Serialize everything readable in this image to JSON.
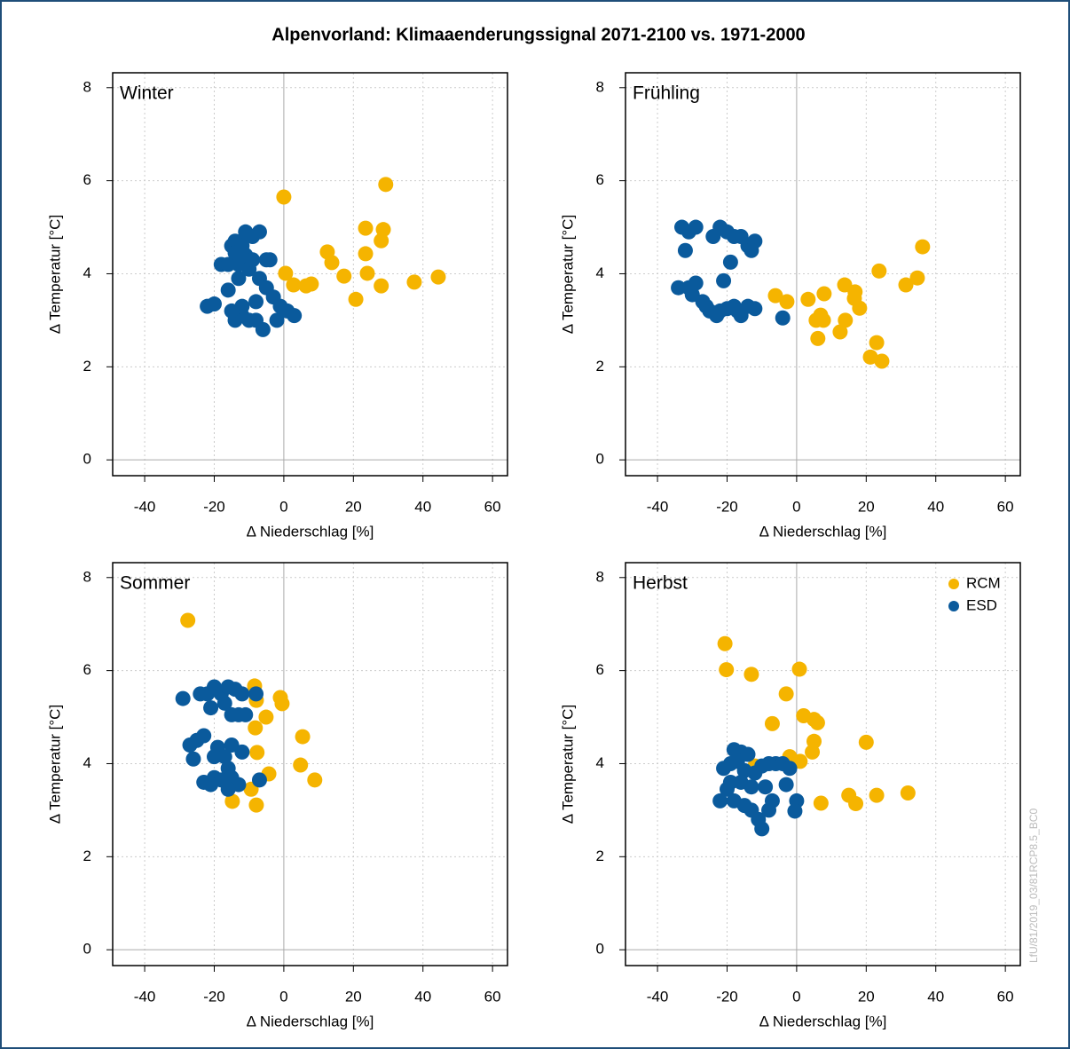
{
  "title": "Alpenvorland: Klimaaenderungssignal 2071-2100 vs. 1971-2000",
  "watermark": "LfU/81/2019_03/81RCP8.5_BC0",
  "chart_data": [
    {
      "type": "scatter",
      "title": "Winter",
      "xlabel": "Δ Niederschlag [%]",
      "ylabel": "Δ Temperatur [°C]",
      "xlim": [
        -49.2,
        64.3
      ],
      "ylim": [
        -0.34,
        8.32
      ],
      "xticks": [
        -40,
        -20,
        0,
        20,
        40,
        60
      ],
      "yticks": [
        0,
        2,
        4,
        6,
        8
      ],
      "grid": true,
      "series": [
        {
          "color": "#f5b400",
          "x": [
            0,
            29.3,
            23.5,
            28.6,
            28,
            23.5,
            12.5,
            13.8,
            0.5,
            24,
            17.3,
            44.4,
            37.5,
            2.8,
            6.4,
            7.9,
            28,
            20.7
          ],
          "y": [
            5.65,
            5.92,
            4.98,
            4.95,
            4.71,
            4.43,
            4.47,
            4.24,
            4.01,
            4.01,
            3.95,
            3.93,
            3.82,
            3.76,
            3.74,
            3.78,
            3.74,
            3.45
          ]
        },
        {
          "color": "#0a5a9c",
          "x": [
            -22,
            -20,
            -18,
            -16,
            -16,
            -15,
            -14,
            -14,
            -13,
            -13,
            -12,
            -12,
            -12,
            -11,
            -11,
            -10,
            -10,
            -9,
            -9,
            -8,
            -8,
            -7,
            -7,
            -6,
            -5,
            -4,
            -5,
            -3,
            -2,
            -1,
            1,
            3,
            -14,
            -15
          ],
          "y": [
            3.3,
            3.35,
            4.2,
            4.2,
            3.65,
            4.6,
            4.7,
            4.45,
            4.2,
            3.9,
            4.6,
            3.3,
            3.1,
            4.9,
            4.4,
            4.1,
            3.0,
            4.8,
            4.3,
            3.4,
            3.0,
            4.9,
            3.9,
            2.8,
            4.3,
            4.3,
            3.7,
            3.5,
            3.0,
            3.3,
            3.2,
            3.1,
            3.0,
            3.2
          ]
        }
      ]
    },
    {
      "type": "scatter",
      "title": "Frühling",
      "xlabel": "Δ Niederschlag [%]",
      "ylabel": "Δ Temperatur [°C]",
      "xlim": [
        -49.2,
        64.3
      ],
      "ylim": [
        -0.34,
        8.32
      ],
      "xticks": [
        -40,
        -20,
        0,
        20,
        40,
        60
      ],
      "yticks": [
        0,
        2,
        4,
        6,
        8
      ],
      "grid": true,
      "series": [
        {
          "color": "#f5b400",
          "x": [
            36.2,
            23.7,
            34.7,
            31.4,
            13.8,
            16.8,
            7.9,
            -6.1,
            3.3,
            16.6,
            -2.8,
            18.1,
            6.9,
            5.6,
            7.7,
            14,
            12.5,
            6.1,
            23,
            21.2,
            24.5
          ],
          "y": [
            4.58,
            4.06,
            3.91,
            3.76,
            3.76,
            3.61,
            3.57,
            3.53,
            3.45,
            3.47,
            3.4,
            3.26,
            3.11,
            3.0,
            3.0,
            3.0,
            2.75,
            2.61,
            2.52,
            2.21,
            2.12
          ]
        },
        {
          "color": "#0a5a9c",
          "x": [
            -33,
            -31,
            -29,
            -32,
            -22,
            -20,
            -24,
            -18,
            -16,
            -14,
            -12,
            -13,
            -19,
            -21,
            -34,
            -31,
            -30,
            -29,
            -27,
            -26,
            -25,
            -23,
            -22,
            -20,
            -18,
            -16,
            -14,
            -12,
            -4,
            -17
          ],
          "y": [
            5.0,
            4.9,
            5.0,
            4.5,
            5.0,
            4.9,
            4.8,
            4.8,
            4.8,
            4.6,
            4.7,
            4.5,
            4.25,
            3.85,
            3.7,
            3.7,
            3.55,
            3.8,
            3.4,
            3.3,
            3.2,
            3.1,
            3.2,
            3.25,
            3.3,
            3.1,
            3.3,
            3.25,
            3.05,
            3.2
          ]
        }
      ]
    },
    {
      "type": "scatter",
      "title": "Sommer",
      "xlabel": "Δ Niederschlag [%]",
      "ylabel": "Δ Temperatur [°C]",
      "xlim": [
        -49.2,
        64.3
      ],
      "ylim": [
        -0.34,
        8.32
      ],
      "xticks": [
        -40,
        -20,
        0,
        20,
        40,
        60
      ],
      "yticks": [
        0,
        2,
        4,
        6,
        8
      ],
      "grid": true,
      "series": [
        {
          "color": "#f5b400",
          "x": [
            -27.6,
            -8.4,
            -1,
            -0.5,
            -7.9,
            -5.1,
            5.4,
            -8.2,
            -7.7,
            4.8,
            8.9,
            -4.3,
            -9.4,
            -14.8,
            -7.9
          ],
          "y": [
            7.08,
            5.67,
            5.42,
            5.29,
            5.36,
            5.0,
            4.58,
            4.77,
            4.24,
            3.97,
            3.65,
            3.78,
            3.45,
            3.19,
            3.11
          ]
        },
        {
          "color": "#0a5a9c",
          "x": [
            -29,
            -24,
            -22,
            -20,
            -18,
            -16,
            -14,
            -12,
            -8,
            -21,
            -17,
            -15,
            -13,
            -11,
            -27,
            -25,
            -23,
            -26,
            -19,
            -15,
            -17,
            -12,
            -16,
            -20,
            -18,
            -23,
            -21,
            -15,
            -13,
            -16,
            -7,
            -20
          ],
          "y": [
            5.4,
            5.5,
            5.5,
            5.65,
            5.5,
            5.65,
            5.6,
            5.5,
            5.5,
            5.2,
            5.3,
            5.05,
            5.05,
            5.05,
            4.4,
            4.5,
            4.6,
            4.1,
            4.35,
            4.4,
            4.15,
            4.25,
            3.9,
            3.7,
            3.65,
            3.6,
            3.55,
            3.7,
            3.55,
            3.45,
            3.65,
            4.15
          ]
        }
      ]
    },
    {
      "type": "scatter",
      "title": "Herbst",
      "xlabel": "Δ Niederschlag [%]",
      "ylabel": "Δ Temperatur [°C]",
      "xlim": [
        -49.2,
        64.3
      ],
      "ylim": [
        -0.34,
        8.32
      ],
      "xticks": [
        -40,
        -20,
        0,
        20,
        40,
        60
      ],
      "yticks": [
        0,
        2,
        4,
        6,
        8
      ],
      "grid": true,
      "legend": "top-right",
      "series": [
        {
          "name": "RCM",
          "color": "#f5b400",
          "x": [
            -20.6,
            -20.2,
            -13,
            0.8,
            -3,
            2,
            5,
            6,
            -7,
            5,
            20,
            4.5,
            -2,
            1,
            -12,
            32,
            23,
            15,
            17,
            7
          ],
          "y": [
            6.58,
            6.02,
            5.92,
            6.03,
            5.5,
            5.03,
            4.95,
            4.88,
            4.86,
            4.48,
            4.46,
            4.25,
            4.15,
            4.05,
            3.95,
            3.37,
            3.32,
            3.32,
            3.14,
            3.15
          ]
        },
        {
          "name": "ESD",
          "color": "#0a5a9c",
          "x": [
            -21,
            -19,
            -18,
            -16,
            -14,
            -17,
            -15,
            -12,
            -10,
            -8,
            -6,
            -4,
            -2,
            -20,
            -22,
            -18,
            -15,
            -13,
            -11,
            -10,
            -8,
            -7,
            -16,
            -3,
            0,
            -0.5,
            -9,
            -19,
            -13
          ],
          "y": [
            3.9,
            4.0,
            4.3,
            4.25,
            4.2,
            4.05,
            3.85,
            3.8,
            3.95,
            4.0,
            4.0,
            4.0,
            3.9,
            3.45,
            3.2,
            3.2,
            3.1,
            3.0,
            2.8,
            2.6,
            3.0,
            3.2,
            3.6,
            3.55,
            3.2,
            2.98,
            3.5,
            3.6,
            3.5
          ]
        }
      ]
    }
  ]
}
